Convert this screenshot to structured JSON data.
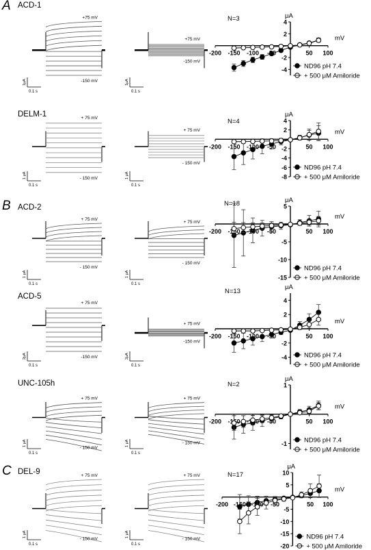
{
  "panel_letters": [
    "A",
    "B",
    "C"
  ],
  "rows": [
    {
      "title": "ACD-1",
      "traces": [
        {
          "top_label": "+75 mV",
          "bottom_label": "-150 mV",
          "scale_y": "1μA",
          "scale_x": "0.1 s"
        },
        {
          "top_label": "+75 mV",
          "bottom_label": "-150 mV",
          "scale_y": "1μA",
          "scale_x": "0.1 s"
        }
      ]
    },
    {
      "title": "DELM-1",
      "traces": [
        {
          "top_label": "+ 75 mV",
          "bottom_label": "- 150 mV",
          "scale_y": "1 μA",
          "scale_x": "0.1 s"
        },
        {
          "top_label": "+ 75 mV",
          "bottom_label": "- 150 mV",
          "scale_y": "1 μA",
          "scale_x": "0.1 s"
        }
      ]
    },
    {
      "title": "ACD-2",
      "traces": [
        {
          "top_label": "+ 75 mV",
          "bottom_label": "- 150 mV",
          "scale_y": "1 μA",
          "scale_x": "0.1 s"
        },
        {
          "top_label": "+ 75 mV",
          "bottom_label": "- 150 mV",
          "scale_y": "1 μA",
          "scale_x": "0.1 s"
        }
      ]
    },
    {
      "title": "ACD-5",
      "traces": [
        {
          "top_label": "+ 75 mV",
          "bottom_label": "-150 mV",
          "scale_y": "2μA",
          "scale_x": "0.1 s"
        },
        {
          "top_label": "+ 75 mV",
          "bottom_label": "-150 mV",
          "scale_y": "2μA",
          "scale_x": "0.1 s"
        }
      ]
    },
    {
      "title": "UNC-105h",
      "traces": [
        {
          "top_label": "+ 75 mV",
          "bottom_label": "- 150 mV",
          "scale_y": "1 μA",
          "scale_x": "0.1 s"
        },
        {
          "top_label": "+ 75 mV",
          "bottom_label": "- 150 mV",
          "scale_y": "1 μA",
          "scale_x": "0.1 s"
        }
      ]
    },
    {
      "title": "DEL-9",
      "traces": [
        {
          "top_label": "+ 75 mV",
          "bottom_label": "- 150 mV",
          "scale_y": "1 μA",
          "scale_x": "0.1 s"
        },
        {
          "top_label": "+ 75 mV",
          "bottom_label": "- 150 mV",
          "scale_y": "1 μA",
          "scale_x": "0.1 s"
        }
      ]
    }
  ],
  "chart_data": [
    {
      "type": "line",
      "n_label": "N=3",
      "xlabel": "mV",
      "ylabel": "μA",
      "xlim": [
        -200,
        100
      ],
      "ylim": [
        -5,
        4
      ],
      "xticks": [
        -200,
        -150,
        -100,
        -50,
        50,
        100
      ],
      "yticks": [
        -4,
        -2,
        2,
        4
      ],
      "x": [
        -150,
        -125,
        -100,
        -75,
        -50,
        -25,
        0,
        25,
        50,
        75
      ],
      "series": [
        {
          "name": "ND96 pH 7.4",
          "marker": "filled",
          "values": [
            -3.7,
            -3.0,
            -2.4,
            -1.9,
            -1.35,
            -0.8,
            -0.25,
            0.15,
            0.45,
            0.95
          ],
          "err": [
            0.6,
            0.5,
            0.45,
            0.4,
            0.3,
            0.25,
            0.15,
            0.15,
            0.25,
            0.35
          ]
        },
        {
          "name": "+ 500 μM Amiloride",
          "marker": "open",
          "values": [
            -0.4,
            -0.35,
            -0.3,
            -0.25,
            -0.2,
            -0.12,
            -0.02,
            0.12,
            0.4,
            0.9
          ],
          "err": [
            0.15,
            0.15,
            0.12,
            0.1,
            0.1,
            0.08,
            0.05,
            0.08,
            0.2,
            0.3
          ]
        }
      ]
    },
    {
      "type": "line",
      "n_label": "N=4",
      "xlabel": "mV",
      "ylabel": "μA",
      "xlim": [
        -200,
        100
      ],
      "ylim": [
        -8,
        4
      ],
      "xticks": [
        -200,
        -150,
        -100,
        -50,
        50,
        100
      ],
      "yticks": [
        -8,
        -6,
        -4,
        -2,
        2,
        4
      ],
      "x": [
        -150,
        -125,
        -100,
        -75,
        -50,
        -25,
        0,
        25,
        50,
        75
      ],
      "series": [
        {
          "name": "ND96 pH 7.4",
          "marker": "filled",
          "values": [
            -3.7,
            -2.9,
            -2.2,
            -1.5,
            -1.0,
            -0.5,
            -0.1,
            0.35,
            0.9,
            1.3
          ],
          "err": [
            2.8,
            2.5,
            2.0,
            1.6,
            1.1,
            0.7,
            0.3,
            0.5,
            1.0,
            1.6
          ]
        },
        {
          "name": "+ 500 μM Amiloride",
          "marker": "open",
          "values": [
            -0.5,
            -0.5,
            -0.45,
            -0.4,
            -0.35,
            -0.25,
            -0.1,
            0.3,
            1.0,
            1.7
          ],
          "err": [
            0.4,
            0.4,
            0.35,
            0.3,
            0.3,
            0.2,
            0.1,
            0.4,
            1.2,
            1.8
          ]
        }
      ]
    },
    {
      "type": "line",
      "n_label": "N=18",
      "xlabel": "mV",
      "ylabel": "μA",
      "xlim": [
        -200,
        100
      ],
      "ylim": [
        -15,
        5
      ],
      "xticks": [
        -200,
        -150,
        -100,
        -50,
        50,
        100
      ],
      "yticks": [
        -15,
        -10,
        -5,
        5
      ],
      "x": [
        -150,
        -125,
        -100,
        -75,
        -50,
        -25,
        0,
        25,
        50,
        75
      ],
      "series": [
        {
          "name": "ND96 pH 7.4",
          "marker": "filled",
          "values": [
            -3.2,
            -2.5,
            -1.8,
            -1.2,
            -0.8,
            -0.5,
            -0.2,
            0.4,
            0.9,
            1.4
          ],
          "err": [
            9.0,
            6.5,
            3.5,
            2.2,
            1.5,
            1.0,
            0.5,
            0.8,
            1.5,
            2.2
          ]
        },
        {
          "name": "+ 500 μM Amiloride",
          "marker": "open",
          "values": [
            -1.3,
            -1.0,
            -0.8,
            -0.6,
            -0.45,
            -0.3,
            -0.1,
            0.2,
            0.5,
            0.9
          ],
          "err": [
            1.8,
            1.4,
            1.1,
            0.9,
            0.7,
            0.5,
            0.3,
            0.5,
            0.8,
            1.2
          ]
        }
      ]
    },
    {
      "type": "line",
      "n_label": "N=13",
      "xlabel": "mV",
      "ylabel": "μA",
      "xlim": [
        -200,
        100
      ],
      "ylim": [
        -5,
        5
      ],
      "xticks": [
        -200,
        -150,
        -100,
        -50,
        50,
        100
      ],
      "yticks": [
        -4,
        -2,
        2,
        4
      ],
      "x": [
        -150,
        -125,
        -100,
        -75,
        -50,
        -25,
        0,
        25,
        50,
        75
      ],
      "series": [
        {
          "name": "ND96 pH 7.4",
          "marker": "filled",
          "values": [
            -2.0,
            -1.7,
            -1.4,
            -1.1,
            -0.8,
            -0.5,
            -0.2,
            0.5,
            1.3,
            2.3
          ],
          "err": [
            1.3,
            1.1,
            0.9,
            0.7,
            0.5,
            0.3,
            0.2,
            0.5,
            0.8,
            1.1
          ]
        },
        {
          "name": "+ 500 μM Amiloride",
          "marker": "open",
          "values": [
            -0.3,
            -0.3,
            -0.3,
            -0.25,
            -0.2,
            -0.15,
            -0.05,
            0.2,
            0.6,
            1.3
          ],
          "err": [
            0.3,
            0.3,
            0.25,
            0.2,
            0.2,
            0.15,
            0.1,
            0.3,
            0.5,
            0.8
          ]
        }
      ]
    },
    {
      "type": "line",
      "n_label": "N=2",
      "xlabel": "mV",
      "ylabel": "μA",
      "xlim": [
        -200,
        100
      ],
      "ylim": [
        -1.2,
        1
      ],
      "xticks": [
        -200,
        -150,
        -100,
        -50,
        50,
        100
      ],
      "yticks": [
        -1,
        1
      ],
      "x": [
        -150,
        -125,
        -100,
        -75,
        -50,
        -25,
        0,
        25,
        50,
        75
      ],
      "series": [
        {
          "name": "ND96 pH 7.4",
          "marker": "filled",
          "values": [
            -0.45,
            -0.35,
            -0.3,
            -0.22,
            -0.15,
            -0.08,
            0.0,
            0.08,
            0.15,
            0.3
          ],
          "err": [
            0.4,
            0.3,
            0.25,
            0.2,
            0.12,
            0.08,
            0.05,
            0.08,
            0.12,
            0.15
          ]
        },
        {
          "name": "+ 500 μM Amiloride",
          "marker": "open",
          "values": [
            -0.3,
            -0.25,
            -0.2,
            -0.16,
            -0.12,
            -0.06,
            0.0,
            0.05,
            0.1,
            0.28
          ],
          "err": [
            0.25,
            0.2,
            0.16,
            0.12,
            0.1,
            0.06,
            0.04,
            0.05,
            0.08,
            0.12
          ]
        }
      ]
    },
    {
      "type": "line",
      "n_label": "N=17",
      "xlabel": "mV",
      "ylabel": "μA",
      "xlim": [
        -200,
        100
      ],
      "ylim": [
        -20,
        10
      ],
      "xticks": [
        -200,
        -150,
        -100,
        -50,
        50,
        100
      ],
      "yticks": [
        -20,
        -15,
        -10,
        -5,
        5,
        10
      ],
      "x": [
        -150,
        -125,
        -100,
        -75,
        -50,
        -25,
        0,
        25,
        50,
        75
      ],
      "series": [
        {
          "name": "ND96 pH 7.4",
          "marker": "filled",
          "values": [
            -4.0,
            -3.0,
            -2.2,
            -1.5,
            -1.0,
            -0.5,
            -0.1,
            0.6,
            1.5,
            2.6
          ],
          "err": [
            5.0,
            3.5,
            2.5,
            1.8,
            1.2,
            0.7,
            0.3,
            0.8,
            1.8,
            2.8
          ]
        },
        {
          "name": "+ 500 μM Amiloride",
          "marker": "open",
          "values": [
            -10.0,
            -6.5,
            -4.0,
            -2.4,
            -1.4,
            -0.8,
            -0.3,
            0.9,
            2.6,
            4.5
          ],
          "err": [
            5.0,
            4.5,
            3.5,
            2.5,
            1.6,
            0.9,
            0.4,
            1.2,
            2.8,
            4.5
          ]
        }
      ]
    }
  ]
}
